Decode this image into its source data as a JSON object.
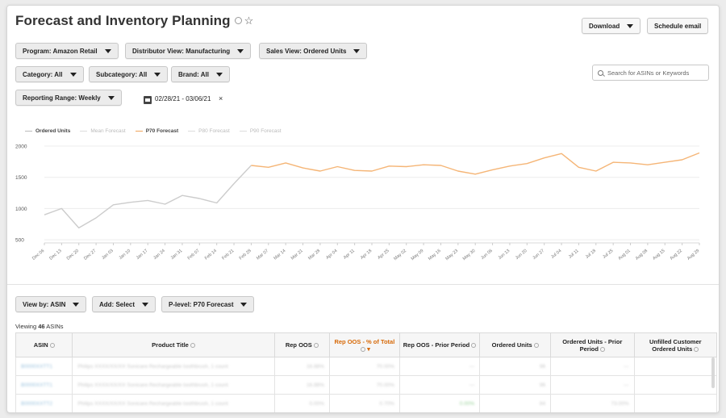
{
  "page": {
    "title": "Forecast and Inventory Planning",
    "star_icon": "star-outline-icon",
    "info_icon": "info-icon"
  },
  "toolbar": {
    "download_label": "Download",
    "schedule_email_label": "Schedule email"
  },
  "filters": {
    "program": "Program: Amazon Retail",
    "distributor_view": "Distributor View: Manufacturing",
    "sales_view": "Sales View: Ordered Units",
    "category": "Category: All",
    "subcategory": "Subcategory: All",
    "brand": "Brand: All",
    "reporting_range": "Reporting Range: Weekly",
    "date_range": "02/28/21 - 03/06/21",
    "date_clear": "×"
  },
  "search": {
    "placeholder": "Search for ASINs or Keywords"
  },
  "legend": {
    "items": [
      "Ordered Units",
      "Mean Forecast",
      "P70 Forecast",
      "P80 Forecast",
      "P90 Forecast"
    ]
  },
  "chart_data": {
    "type": "line",
    "categories": [
      "Dec 06",
      "Dec 13",
      "Dec 20",
      "Dec 27",
      "Jan 03",
      "Jan 10",
      "Jan 17",
      "Jan 24",
      "Jan 31",
      "Feb 07",
      "Feb 14",
      "Feb 21",
      "Feb 28",
      "Mar 07",
      "Mar 14",
      "Mar 21",
      "Mar 28",
      "Apr 04",
      "Apr 11",
      "Apr 18",
      "Apr 25",
      "May 02",
      "May 09",
      "May 16",
      "May 23",
      "May 30",
      "Jun 06",
      "Jun 13",
      "Jun 20",
      "Jun 27",
      "Jul 04",
      "Jul 11",
      "Jul 18",
      "Jul 25",
      "Aug 01",
      "Aug 08",
      "Aug 15",
      "Aug 22",
      "Aug 29"
    ],
    "series": [
      {
        "name": "Ordered Units",
        "color": "#cccccc",
        "values": [
          900,
          1000,
          690,
          850,
          1060,
          1100,
          1130,
          1070,
          1210,
          1160,
          1090,
          1400,
          1690,
          null,
          null,
          null,
          null,
          null,
          null,
          null,
          null,
          null,
          null,
          null,
          null,
          null,
          null,
          null,
          null,
          null,
          null,
          null,
          null,
          null,
          null,
          null,
          null,
          null,
          null
        ]
      },
      {
        "name": "P70 Forecast",
        "color": "#f5b576",
        "values": [
          null,
          null,
          null,
          null,
          null,
          null,
          null,
          null,
          null,
          null,
          null,
          null,
          1690,
          1660,
          1730,
          1650,
          1600,
          1670,
          1610,
          1600,
          1680,
          1670,
          1700,
          1690,
          1600,
          1550,
          1620,
          1680,
          1720,
          1810,
          1880,
          1660,
          1600,
          1740,
          1730,
          1700,
          1740,
          1780,
          1890
        ]
      }
    ],
    "yticks": [
      500,
      1000,
      1500,
      2000
    ],
    "ylim": [
      450,
      2000
    ],
    "grid": true,
    "legend_position": "top-left"
  },
  "table_controls": {
    "view_by": "View by: ASIN",
    "add": "Add: Select",
    "p_level": "P-level: P70 Forecast"
  },
  "table": {
    "viewing_prefix": "Viewing",
    "viewing_count": "46",
    "viewing_suffix": "ASINs",
    "headers": [
      "ASIN",
      "Product Title",
      "Rep OOS",
      "Rep OOS - % of Total",
      "Rep OOS - Prior Period",
      "Ordered Units",
      "Ordered Units - Prior Period",
      "Unfilled Customer Ordered Units"
    ],
    "rows": [
      [
        "B0000XXTT1",
        "Philips XXXX/XX/XX Sonicare Rechargeable toothbrush, 1 count",
        "16.88%",
        "70.00%",
        "—",
        "96",
        "—",
        ""
      ],
      [
        "B0000XXTT1",
        "Philips XXXX/XX/XX Sonicare Rechargeable toothbrush, 1 count",
        "16.88%",
        "70.00%",
        "—",
        "96",
        "—",
        ""
      ],
      [
        "B0000XXTT2",
        "Philips XXXX/XX/XX Sonicare Rechargeable toothbrush, 1 count",
        "0.00%",
        "0.70%",
        "0.00%",
        "84",
        "73.00%",
        ""
      ]
    ]
  }
}
